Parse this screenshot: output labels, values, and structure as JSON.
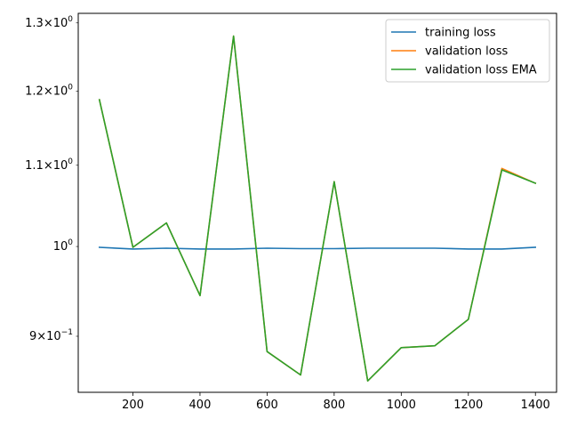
{
  "chart_data": {
    "type": "line",
    "title": "",
    "xlabel": "",
    "ylabel": "",
    "yscale": "log",
    "xlim": [
      37,
      1463
    ],
    "ylim": [
      0.8427,
      1.3147
    ],
    "x_ticks": [
      200,
      400,
      600,
      800,
      1000,
      1200,
      1400
    ],
    "y_ticks": [
      {
        "value": 0.9,
        "mantissa": "9",
        "exponent": "−1"
      },
      {
        "value": 1.0,
        "mantissa": "",
        "exponent": "0"
      },
      {
        "value": 1.1,
        "mantissa": "1.1",
        "exponent": "0"
      },
      {
        "value": 1.2,
        "mantissa": "1.2",
        "exponent": "0"
      },
      {
        "value": 1.3,
        "mantissa": "1.3",
        "exponent": "0"
      }
    ],
    "y_minor_ticks": [
      0.9,
      1.0,
      1.1,
      1.2,
      1.3
    ],
    "grid": false,
    "legend_position": "top-right",
    "x": [
      100,
      200,
      300,
      400,
      500,
      600,
      700,
      800,
      900,
      1000,
      1100,
      1200,
      1300,
      1400
    ],
    "series": [
      {
        "name": "training loss",
        "color": "#1f77b4",
        "values": [
          0.999,
          0.997,
          0.998,
          0.997,
          0.997,
          0.998,
          0.9975,
          0.9975,
          0.998,
          0.998,
          0.998,
          0.997,
          0.997,
          0.999
        ]
      },
      {
        "name": "validation loss",
        "color": "#ff7f0e",
        "values": [
          1.188,
          0.999,
          1.028,
          0.944,
          1.28,
          0.884,
          0.86,
          1.079,
          0.854,
          0.888,
          0.89,
          0.918,
          1.096,
          1.077
        ]
      },
      {
        "name": "validation loss EMA",
        "color": "#2ca02c",
        "values": [
          1.188,
          0.999,
          1.028,
          0.944,
          1.28,
          0.884,
          0.86,
          1.079,
          0.854,
          0.888,
          0.89,
          0.918,
          1.094,
          1.077
        ]
      }
    ]
  }
}
